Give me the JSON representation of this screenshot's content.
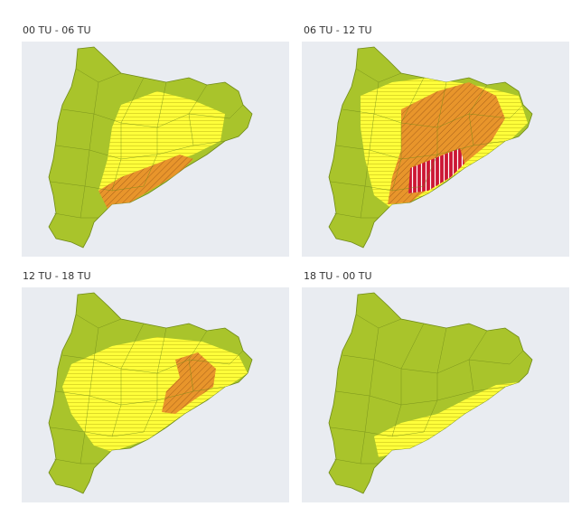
{
  "panels": [
    {
      "label": "00 TU - 06 TU"
    },
    {
      "label": "06 TU - 12 TU"
    },
    {
      "label": "12 TU - 18 TU"
    },
    {
      "label": "18 TU - 00 TU"
    }
  ]
}
